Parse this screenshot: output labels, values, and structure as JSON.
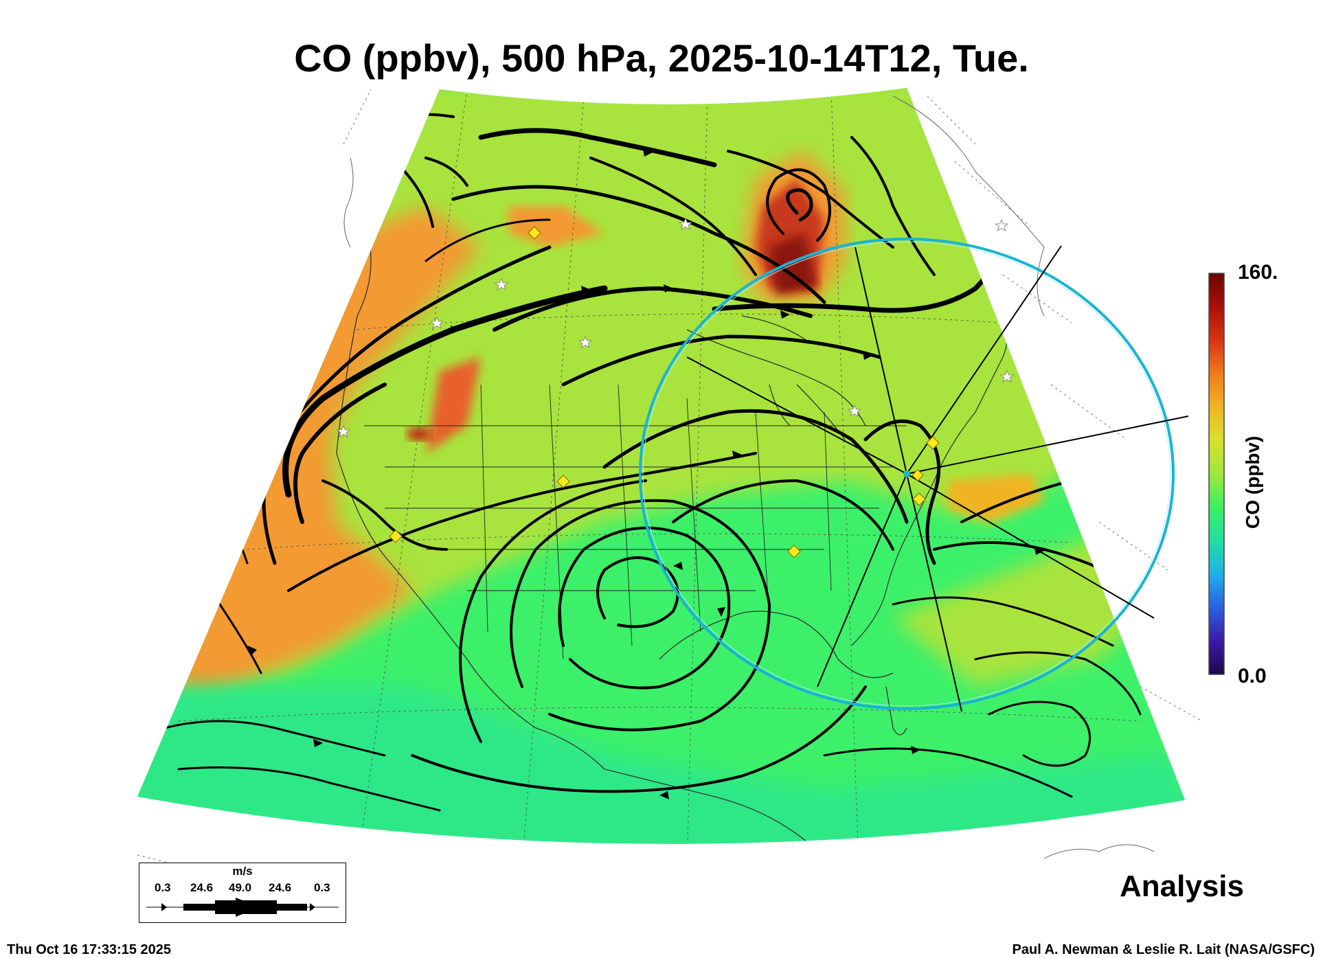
{
  "title": "CO (ppbv), 500 hPa, 2025-10-14T12, Tue.",
  "colorbar": {
    "max_label": "160.",
    "min_label": "0.0",
    "title": "CO (ppbv)",
    "colors": [
      "#1a0a4a",
      "#3b1aa8",
      "#2a60e0",
      "#1fb0e8",
      "#20e0a0",
      "#3cf060",
      "#9ee83c",
      "#d8e02a",
      "#f0b424",
      "#f07a1c",
      "#d83414",
      "#a81008",
      "#6a0404"
    ]
  },
  "wind_legend": {
    "units": "m/s",
    "ticks": [
      "0.3",
      "24.6",
      "49.0",
      "24.6",
      "0.3"
    ]
  },
  "analysis_label": "Analysis",
  "timestamp": "Thu Oct 16 17:33:15 2025",
  "credit": "Paul A. Newman & Leslie R. Lait (NASA/GSFC)",
  "map": {
    "field_colors": {
      "background_green": "#3cf06a",
      "yellow_green": "#a8e43c",
      "orange": "#f39a30",
      "red": "#d8401a",
      "dark_red": "#8a1208"
    },
    "range_ring_color": "#19b4d2",
    "station_marker_color": "#ffe81a"
  }
}
